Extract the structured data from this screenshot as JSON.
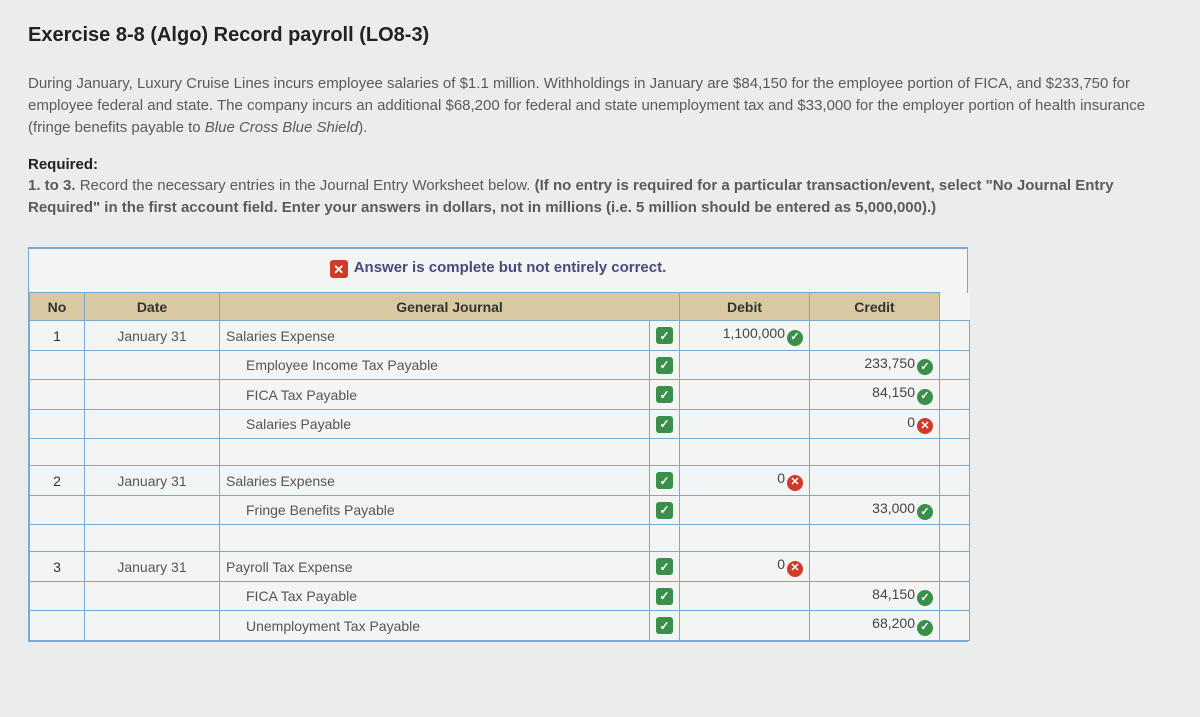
{
  "title": "Exercise 8-8 (Algo) Record payroll (LO8-3)",
  "paragraph": {
    "pre": "During January, Luxury Cruise Lines incurs employee salaries of $1.1 million. Withholdings in January are $84,150 for the employee portion of FICA, and $233,750 for employee federal and state. The company incurs an additional $68,200 for federal and state unemployment tax and $33,000 for the employer portion of health insurance (fringe benefits payable to ",
    "italic": "Blue Cross Blue Shield",
    "post": ")."
  },
  "required_label": "Required:",
  "required_text": {
    "pre": "1. to 3. ",
    "plain": "Record the necessary entries in the Journal Entry Worksheet below. ",
    "bold": "(If no entry is required for a particular transaction/event, select \"No Journal Entry Required\" in the first account field. Enter your answers in dollars, not in millions (i.e. 5 million should be entered as 5,000,000).)"
  },
  "banner": "Answer is complete but not entirely correct.",
  "headers": {
    "no": "No",
    "date": "Date",
    "gj": "General Journal",
    "debit": "Debit",
    "credit": "Credit"
  },
  "rows": [
    {
      "no": "1",
      "date": "January 31",
      "account": "Salaries Expense",
      "indent": false,
      "rowCheck": true,
      "debit": "1,100,000",
      "debitMark": "ok",
      "credit": "",
      "creditMark": ""
    },
    {
      "no": "",
      "date": "",
      "account": "Employee Income Tax Payable",
      "indent": true,
      "rowCheck": true,
      "debit": "",
      "debitMark": "",
      "credit": "233,750",
      "creditMark": "ok"
    },
    {
      "no": "",
      "date": "",
      "account": "FICA Tax Payable",
      "indent": true,
      "rowCheck": true,
      "debit": "",
      "debitMark": "",
      "credit": "84,150",
      "creditMark": "ok"
    },
    {
      "no": "",
      "date": "",
      "account": "Salaries Payable",
      "indent": true,
      "rowCheck": true,
      "debit": "",
      "debitMark": "",
      "credit": "0",
      "creditMark": "bad"
    },
    {
      "spacer": true
    },
    {
      "no": "2",
      "date": "January 31",
      "account": "Salaries Expense",
      "indent": false,
      "rowCheck": true,
      "debit": "0",
      "debitMark": "bad",
      "credit": "",
      "creditMark": ""
    },
    {
      "no": "",
      "date": "",
      "account": "Fringe Benefits Payable",
      "indent": true,
      "rowCheck": true,
      "debit": "",
      "debitMark": "",
      "credit": "33,000",
      "creditMark": "ok"
    },
    {
      "spacer": true
    },
    {
      "no": "3",
      "date": "January 31",
      "account": "Payroll Tax Expense",
      "indent": false,
      "rowCheck": true,
      "debit": "0",
      "debitMark": "bad",
      "credit": "",
      "creditMark": ""
    },
    {
      "no": "",
      "date": "",
      "account": "FICA Tax Payable",
      "indent": true,
      "rowCheck": true,
      "debit": "",
      "debitMark": "",
      "credit": "84,150",
      "creditMark": "ok"
    },
    {
      "no": "",
      "date": "",
      "account": "Unemployment Tax Payable",
      "indent": true,
      "rowCheck": true,
      "debit": "",
      "debitMark": "",
      "credit": "68,200",
      "creditMark": "ok"
    }
  ],
  "glyphs": {
    "check": "✓",
    "cross": "✕"
  },
  "colors": {
    "border": "#7aa8cf",
    "header_bg": "#d9c9a3",
    "ok": "#3a8f4a",
    "bad": "#d03a2b",
    "page_bg": "#ebeded"
  }
}
